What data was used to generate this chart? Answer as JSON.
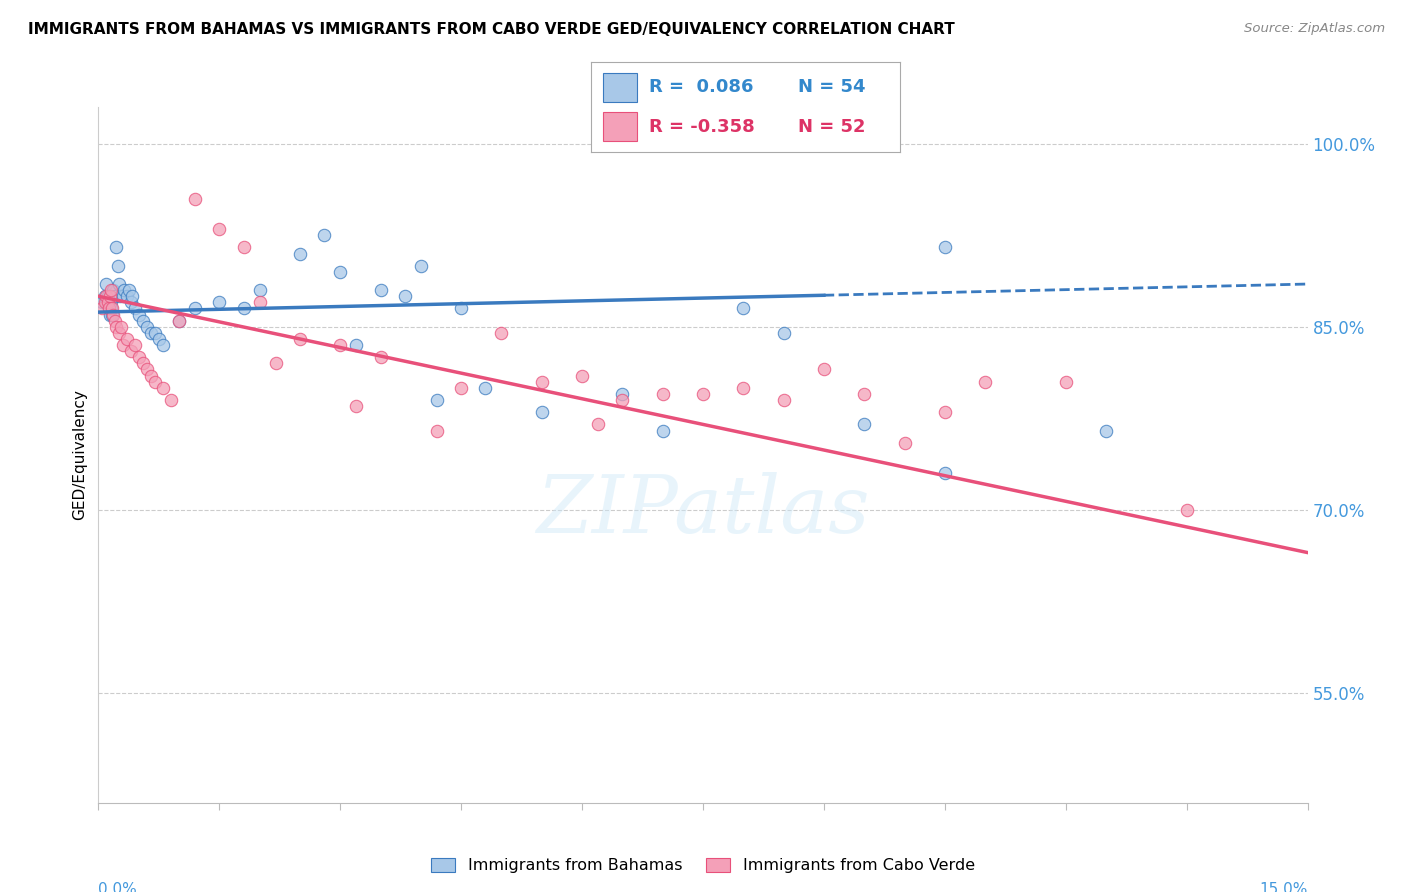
{
  "title": "IMMIGRANTS FROM BAHAMAS VS IMMIGRANTS FROM CABO VERDE GED/EQUIVALENCY CORRELATION CHART",
  "source": "Source: ZipAtlas.com",
  "ylabel": "GED/Equivalency",
  "xmin": 0.0,
  "xmax": 15.0,
  "ymin": 46.0,
  "ymax": 103.0,
  "yticks": [
    55.0,
    70.0,
    85.0,
    100.0
  ],
  "xtick_count": 11,
  "color_bahamas": "#a8c8e8",
  "color_caboverde": "#f4a0b8",
  "color_trendline_bahamas": "#3a7abf",
  "color_trendline_caboverde": "#e8507a",
  "color_right_axis": "#4499dd",
  "color_legend_text_bahamas": "#3388cc",
  "color_legend_text_caboverde": "#dd3366",
  "trendline_bah_x0": 0.0,
  "trendline_bah_y0": 86.2,
  "trendline_bah_x1": 15.0,
  "trendline_bah_y1": 88.5,
  "trendline_bah_solid_end": 9.0,
  "trendline_cv_x0": 0.0,
  "trendline_cv_y0": 87.5,
  "trendline_cv_x1": 15.0,
  "trendline_cv_y1": 66.5,
  "bahamas_x": [
    0.05,
    0.08,
    0.1,
    0.1,
    0.12,
    0.13,
    0.14,
    0.15,
    0.16,
    0.17,
    0.18,
    0.2,
    0.22,
    0.24,
    0.25,
    0.27,
    0.3,
    0.32,
    0.35,
    0.38,
    0.4,
    0.42,
    0.45,
    0.5,
    0.55,
    0.6,
    0.65,
    0.7,
    0.75,
    0.8,
    1.0,
    1.2,
    1.5,
    1.8,
    2.0,
    2.5,
    2.8,
    3.0,
    3.5,
    4.0,
    4.5,
    5.5,
    7.0,
    8.5,
    10.5,
    3.2,
    4.8,
    6.5,
    8.0,
    9.5,
    10.5,
    12.5,
    3.8,
    4.2
  ],
  "bahamas_y": [
    87.0,
    87.5,
    88.5,
    87.0,
    87.5,
    86.5,
    86.0,
    87.0,
    86.5,
    86.0,
    88.0,
    87.5,
    91.5,
    90.0,
    88.5,
    87.5,
    87.5,
    88.0,
    87.5,
    88.0,
    87.0,
    87.5,
    86.5,
    86.0,
    85.5,
    85.0,
    84.5,
    84.5,
    84.0,
    83.5,
    85.5,
    86.5,
    87.0,
    86.5,
    88.0,
    91.0,
    92.5,
    89.5,
    88.0,
    90.0,
    86.5,
    78.0,
    76.5,
    84.5,
    91.5,
    83.5,
    80.0,
    79.5,
    86.5,
    77.0,
    73.0,
    76.5,
    87.5,
    79.0
  ],
  "caboverde_x": [
    0.05,
    0.08,
    0.1,
    0.12,
    0.13,
    0.14,
    0.15,
    0.17,
    0.18,
    0.2,
    0.22,
    0.25,
    0.28,
    0.3,
    0.35,
    0.4,
    0.45,
    0.5,
    0.55,
    0.6,
    0.65,
    0.7,
    0.8,
    0.9,
    1.0,
    1.2,
    1.5,
    1.8,
    2.0,
    2.5,
    3.0,
    3.5,
    4.5,
    5.0,
    5.5,
    6.0,
    6.5,
    7.0,
    7.5,
    8.0,
    8.5,
    9.0,
    9.5,
    10.0,
    10.5,
    11.0,
    12.0,
    13.5,
    2.2,
    3.2,
    4.2,
    6.2
  ],
  "caboverde_y": [
    86.5,
    87.0,
    87.5,
    87.0,
    86.5,
    87.5,
    88.0,
    86.5,
    86.0,
    85.5,
    85.0,
    84.5,
    85.0,
    83.5,
    84.0,
    83.0,
    83.5,
    82.5,
    82.0,
    81.5,
    81.0,
    80.5,
    80.0,
    79.0,
    85.5,
    95.5,
    93.0,
    91.5,
    87.0,
    84.0,
    83.5,
    82.5,
    80.0,
    84.5,
    80.5,
    81.0,
    79.0,
    79.5,
    79.5,
    80.0,
    79.0,
    81.5,
    79.5,
    75.5,
    78.0,
    80.5,
    80.5,
    70.0,
    82.0,
    78.5,
    76.5,
    77.0
  ]
}
